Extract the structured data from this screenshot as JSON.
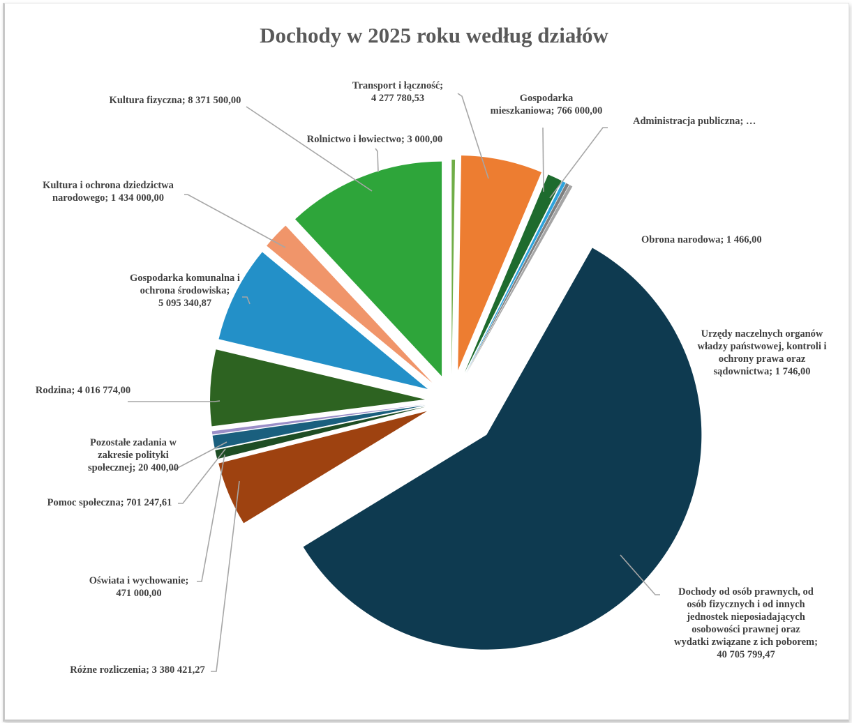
{
  "chart_data": {
    "type": "pie",
    "title": "Dochody w 2025 roku według działów",
    "exploded": true,
    "legend": "none",
    "slices": [
      {
        "name": "Rolnictwo i łowiectwo",
        "value": 3000.0,
        "color": "#70ad47",
        "label": [
          "Rolnictwo i łowiectwo; 3 000,00"
        ]
      },
      {
        "name": "Transport i łączność",
        "value": 4277780.53,
        "color": "#ed7d31",
        "label": [
          "Transport i łączność;",
          "4 277 780,53"
        ]
      },
      {
        "name": "Gospodarka mieszkaniowa",
        "value": 766000.0,
        "color": "#1e6b2e",
        "label": [
          "Gospodarka",
          "mieszkaniowa; 766 000,00"
        ]
      },
      {
        "name": "Administracja publiczna",
        "value": 62000.0,
        "color": "#2ea3dc",
        "label": [
          "Administracja publiczna; …"
        ]
      },
      {
        "name": "Obrona narodowa",
        "value": 1466.0,
        "color": "#7f7f7f",
        "label": [
          "Obrona narodowa;  1 466,00"
        ]
      },
      {
        "name": "Urzędy naczelnych organów władzy państwowej, kontroli i ochrony prawa oraz sądownictwa",
        "value": 1746.0,
        "color": "#a5a5a5",
        "label": [
          "Urzędy naczelnych organów",
          "władzy państwowej, kontroli i",
          "ochrony prawa  oraz",
          "sądownictwa;  1 746,00"
        ]
      },
      {
        "name": "Dochody od osób prawnych, od osób fizycznych i od innych jednostek nieposiadających osobowości prawnej oraz wydatki związane z ich poborem",
        "value": 40705799.47,
        "color": "#0e3a50",
        "label": [
          "Dochody od osób prawnych, od",
          "osób fizycznych i od  innych",
          "jednostek nieposiadających",
          "osobowości prawnej oraz",
          "wydatki związane z ich poborem;",
          "40 705 799,47"
        ]
      },
      {
        "name": "Różne rozliczenia",
        "value": 3380421.27,
        "color": "#9e4210",
        "label": [
          "Różne rozliczenia; 3 380 421,27"
        ]
      },
      {
        "name": "Oświata i wychowanie",
        "value": 471000.0,
        "color": "#1e4d24",
        "label": [
          "Oświata i wychowanie;",
          "471 000,00"
        ]
      },
      {
        "name": "Pomoc społeczna",
        "value": 701247.61,
        "color": "#1a5f7e",
        "label": [
          "Pomoc społeczna; 701 247,61"
        ]
      },
      {
        "name": "Pozostałe zadania w zakresie polityki społecznej",
        "value": 20400.0,
        "color": "#9b8fc8",
        "label": [
          "Pozostałe zadania w",
          "zakresie polityki",
          "społecznej; 20 400,00"
        ]
      },
      {
        "name": "Rodzina",
        "value": 4016774.0,
        "color": "#2d6321",
        "label": [
          "Rodzina;  4 016 774,00"
        ]
      },
      {
        "name": "Gospodarka komunalna i ochrona środowiska",
        "value": 5095340.87,
        "color": "#2390c8",
        "label": [
          "Gospodarka komunalna  i",
          "ochrona środowiska;",
          "5 095 340,87"
        ]
      },
      {
        "name": "Kultura i ochrona dziedzictwa narodowego",
        "value": 1434000.0,
        "color": "#f0956a",
        "label": [
          "Kultura i ochrona dziedzictwa",
          "narodowego;  1 434 000,00"
        ]
      },
      {
        "name": "Kultura fizyczna",
        "value": 8371500.0,
        "color": "#2ea53a",
        "label": [
          "Kultura fizyczna; 8 371 500,00"
        ]
      }
    ]
  }
}
